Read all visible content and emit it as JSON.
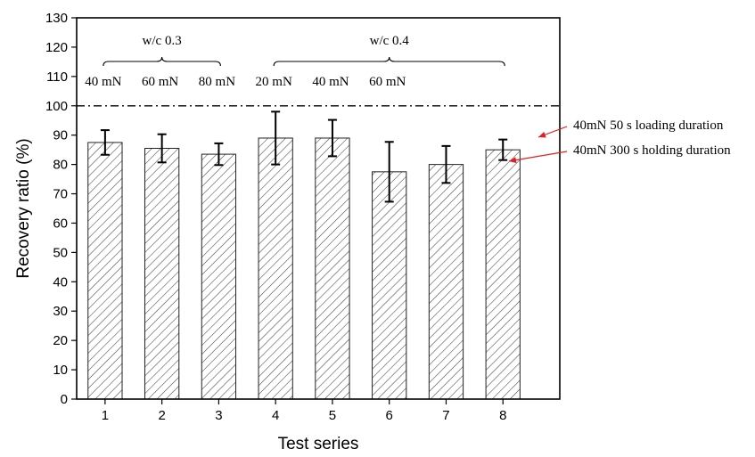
{
  "chart_data": {
    "type": "bar",
    "xlabel": "Test series",
    "ylabel": "Recovery ratio (%)",
    "ylim": [
      0,
      130
    ],
    "yticks": [
      0,
      10,
      20,
      30,
      40,
      50,
      60,
      70,
      80,
      90,
      100,
      110,
      120,
      130
    ],
    "categories": [
      "1",
      "2",
      "3",
      "4",
      "5",
      "6",
      "7",
      "8"
    ],
    "values": [
      87.5,
      85.5,
      83.5,
      89,
      89,
      77.5,
      80,
      85
    ],
    "errors": [
      4.2,
      4.8,
      3.7,
      9,
      6.2,
      10.2,
      6.3,
      3.5
    ],
    "reference_line": 100,
    "groups": [
      {
        "label": "w/c 0.3",
        "from": 1,
        "to": 3
      },
      {
        "label": "w/c 0.4",
        "from": 4,
        "to": 8
      }
    ],
    "load_labels": [
      {
        "x": 1,
        "text": "40 mN"
      },
      {
        "x": 2,
        "text": "60 mN"
      },
      {
        "x": 3,
        "text": "80 mN"
      },
      {
        "x": 4,
        "text": "20 mN"
      },
      {
        "x": 5,
        "text": "40 mN"
      },
      {
        "x": 6,
        "text": "60 mN"
      }
    ],
    "annotations": [
      {
        "text": "40mN 50 s loading duration",
        "target": 8
      },
      {
        "text": "40mN 300 s holding duration",
        "target": 7
      }
    ],
    "colors": {
      "bar_fill": "#ffffff",
      "hatch": "#444444",
      "arrow": "#e02020"
    }
  }
}
